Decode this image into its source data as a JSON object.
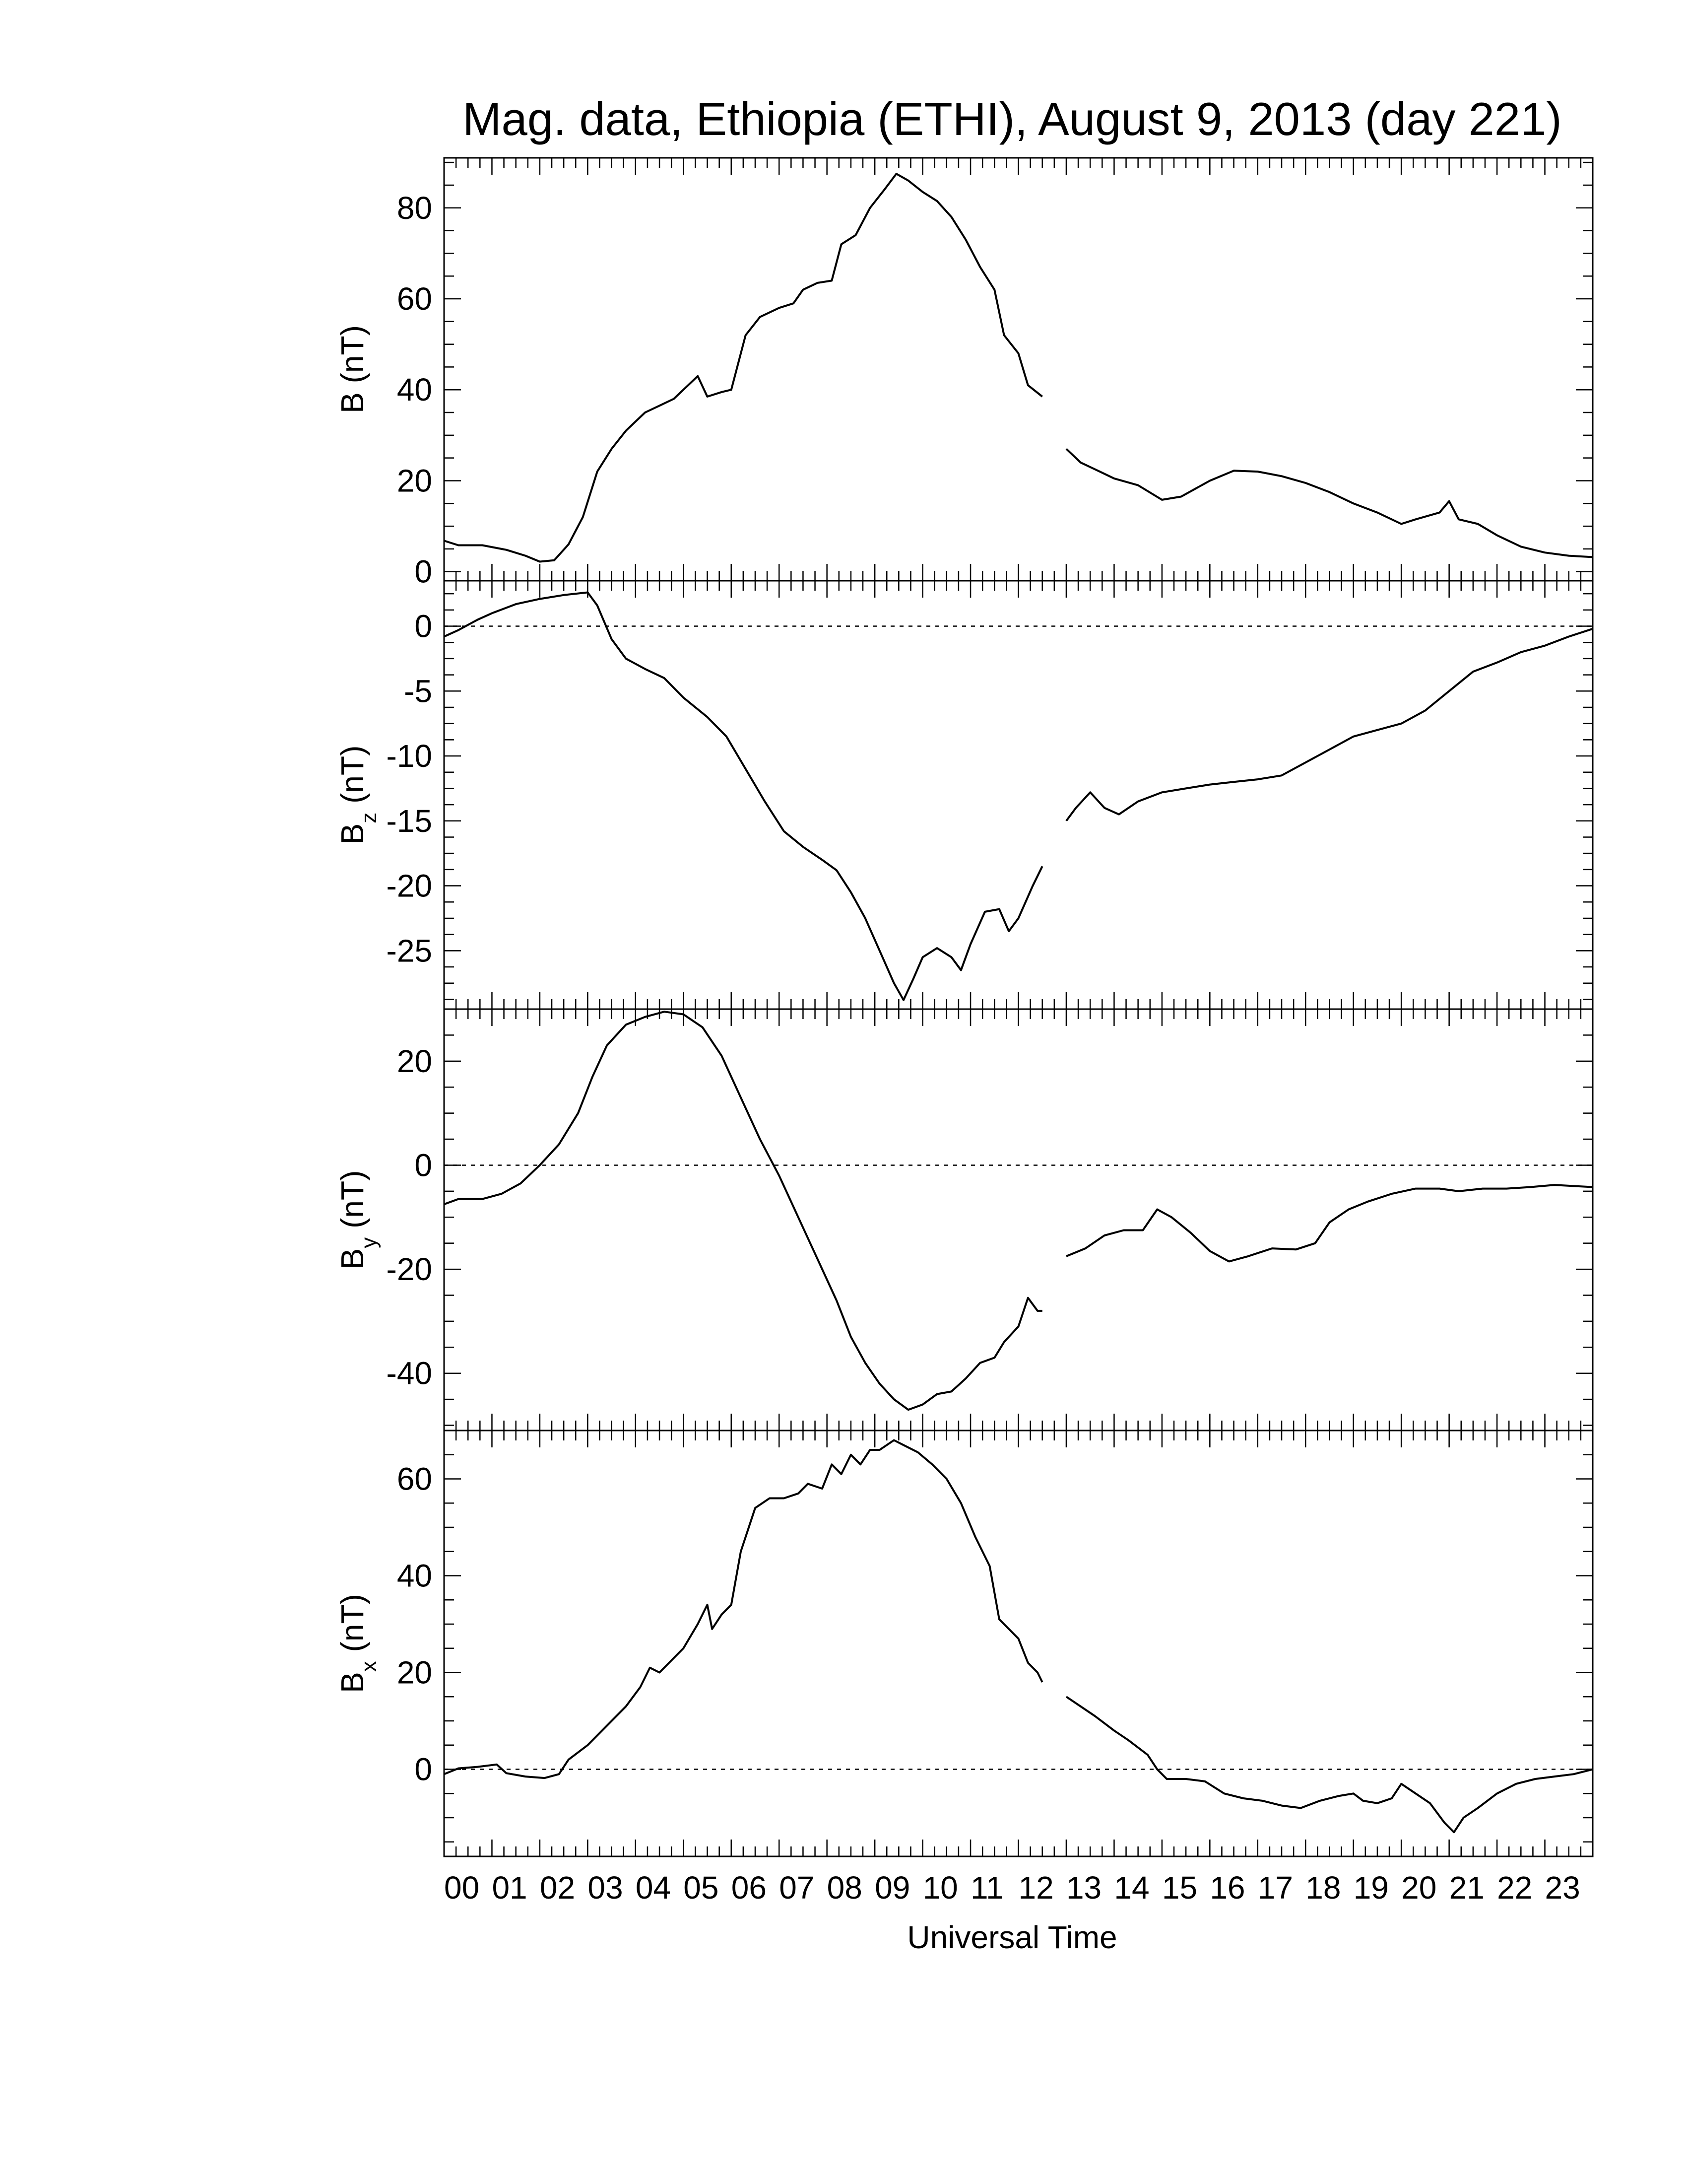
{
  "figure": {
    "title": "Mag. data, Ethiopia (ETHI), August 9, 2013 (day 221)",
    "xlabel": "Universal Time"
  },
  "chart_data": [
    {
      "type": "line",
      "id": "B",
      "ylabel": {
        "main": "B",
        "sub": "",
        "unit": "(nT)"
      },
      "ylim": [
        -2,
        91
      ],
      "yticks": [
        0,
        20,
        40,
        60,
        80
      ],
      "zero_line": false,
      "xlim": [
        0,
        24
      ],
      "segments": [
        [
          [
            0,
            6.8
          ],
          [
            0.3,
            5.8
          ],
          [
            0.8,
            5.8
          ],
          [
            1.3,
            4.8
          ],
          [
            1.7,
            3.5
          ],
          [
            2.0,
            2.2
          ],
          [
            2.3,
            2.5
          ],
          [
            2.6,
            6
          ],
          [
            2.9,
            12
          ],
          [
            3.2,
            22
          ],
          [
            3.5,
            27
          ],
          [
            3.8,
            31
          ],
          [
            4.2,
            35
          ],
          [
            4.5,
            36.5
          ],
          [
            4.8,
            38
          ],
          [
            5.1,
            41
          ],
          [
            5.3,
            43
          ],
          [
            5.5,
            38.5
          ],
          [
            5.8,
            39.5
          ],
          [
            6.0,
            40
          ],
          [
            6.3,
            52
          ],
          [
            6.6,
            56
          ],
          [
            7.0,
            58
          ],
          [
            7.3,
            59
          ],
          [
            7.5,
            62
          ],
          [
            7.8,
            63.5
          ],
          [
            8.1,
            64
          ],
          [
            8.3,
            72
          ],
          [
            8.6,
            74
          ],
          [
            8.9,
            80
          ],
          [
            9.2,
            84
          ],
          [
            9.45,
            87.5
          ],
          [
            9.7,
            86
          ],
          [
            10.0,
            83.5
          ],
          [
            10.3,
            81.5
          ],
          [
            10.6,
            78
          ],
          [
            10.9,
            73
          ],
          [
            11.2,
            67
          ],
          [
            11.5,
            62
          ],
          [
            11.7,
            52
          ],
          [
            12.0,
            48
          ],
          [
            12.2,
            41
          ],
          [
            12.5,
            38.5
          ]
        ],
        [
          [
            13.0,
            27
          ],
          [
            13.3,
            24
          ],
          [
            13.7,
            22
          ],
          [
            14.0,
            20.5
          ],
          [
            14.5,
            19
          ],
          [
            15.0,
            15.8
          ],
          [
            15.4,
            16.5
          ],
          [
            16.0,
            20
          ],
          [
            16.5,
            22.2
          ],
          [
            17.0,
            22
          ],
          [
            17.5,
            21
          ],
          [
            18.0,
            19.5
          ],
          [
            18.5,
            17.5
          ],
          [
            19.0,
            15
          ],
          [
            19.5,
            13
          ],
          [
            20.0,
            10.5
          ],
          [
            20.3,
            11.5
          ],
          [
            20.8,
            13
          ],
          [
            21.0,
            15.5
          ],
          [
            21.2,
            11.5
          ],
          [
            21.6,
            10.5
          ],
          [
            22.0,
            8
          ],
          [
            22.5,
            5.5
          ],
          [
            23.0,
            4.2
          ],
          [
            23.5,
            3.5
          ],
          [
            24.0,
            3.2
          ]
        ]
      ]
    },
    {
      "type": "line",
      "id": "Bz",
      "ylabel": {
        "main": "B",
        "sub": "z",
        "unit": "(nT)"
      },
      "ylim": [
        -29.5,
        3.5
      ],
      "yticks": [
        0,
        -5,
        -10,
        -15,
        -20,
        -25
      ],
      "zero_line": true,
      "xlim": [
        0,
        24
      ],
      "segments": [
        [
          [
            0,
            -0.8
          ],
          [
            0.3,
            -0.3
          ],
          [
            0.7,
            0.5
          ],
          [
            1.0,
            1.0
          ],
          [
            1.5,
            1.7
          ],
          [
            2.0,
            2.1
          ],
          [
            2.5,
            2.4
          ],
          [
            3.0,
            2.6
          ],
          [
            3.2,
            1.6
          ],
          [
            3.5,
            -1.0
          ],
          [
            3.8,
            -2.5
          ],
          [
            4.2,
            -3.3
          ],
          [
            4.6,
            -4.0
          ],
          [
            5.0,
            -5.5
          ],
          [
            5.5,
            -7.0
          ],
          [
            5.9,
            -8.5
          ],
          [
            6.3,
            -11.0
          ],
          [
            6.7,
            -13.5
          ],
          [
            7.1,
            -15.8
          ],
          [
            7.5,
            -17.0
          ],
          [
            7.9,
            -18.0
          ],
          [
            8.2,
            -18.8
          ],
          [
            8.5,
            -20.5
          ],
          [
            8.8,
            -22.5
          ],
          [
            9.1,
            -25.0
          ],
          [
            9.4,
            -27.5
          ],
          [
            9.6,
            -28.8
          ],
          [
            9.8,
            -27.2
          ],
          [
            10.0,
            -25.5
          ],
          [
            10.3,
            -24.8
          ],
          [
            10.6,
            -25.5
          ],
          [
            10.8,
            -26.5
          ],
          [
            11.0,
            -24.5
          ],
          [
            11.3,
            -22.0
          ],
          [
            11.6,
            -21.8
          ],
          [
            11.8,
            -23.5
          ],
          [
            12.0,
            -22.5
          ],
          [
            12.3,
            -20.0
          ],
          [
            12.5,
            -18.5
          ]
        ],
        [
          [
            13.0,
            -15.0
          ],
          [
            13.2,
            -14.0
          ],
          [
            13.5,
            -12.8
          ],
          [
            13.8,
            -14.0
          ],
          [
            14.1,
            -14.5
          ],
          [
            14.5,
            -13.5
          ],
          [
            15.0,
            -12.8
          ],
          [
            15.5,
            -12.5
          ],
          [
            16.0,
            -12.2
          ],
          [
            16.5,
            -12.0
          ],
          [
            17.0,
            -11.8
          ],
          [
            17.5,
            -11.5
          ],
          [
            18.0,
            -10.5
          ],
          [
            18.5,
            -9.5
          ],
          [
            19.0,
            -8.5
          ],
          [
            19.5,
            -8.0
          ],
          [
            20.0,
            -7.5
          ],
          [
            20.5,
            -6.5
          ],
          [
            21.0,
            -5.0
          ],
          [
            21.5,
            -3.5
          ],
          [
            22.0,
            -2.8
          ],
          [
            22.5,
            -2.0
          ],
          [
            23.0,
            -1.5
          ],
          [
            23.5,
            -0.8
          ],
          [
            24.0,
            -0.2
          ]
        ]
      ]
    },
    {
      "type": "line",
      "id": "By",
      "ylabel": {
        "main": "B",
        "sub": "y",
        "unit": "(nT)"
      },
      "ylim": [
        -51,
        30
      ],
      "yticks": [
        20,
        0,
        -20,
        -40
      ],
      "zero_line": true,
      "xlim": [
        0,
        24
      ],
      "segments": [
        [
          [
            0,
            -7.5
          ],
          [
            0.3,
            -6.5
          ],
          [
            0.8,
            -6.5
          ],
          [
            1.2,
            -5.5
          ],
          [
            1.6,
            -3.5
          ],
          [
            2.0,
            0
          ],
          [
            2.4,
            4
          ],
          [
            2.8,
            10
          ],
          [
            3.1,
            17
          ],
          [
            3.4,
            23
          ],
          [
            3.8,
            27
          ],
          [
            4.2,
            28.5
          ],
          [
            4.6,
            29.5
          ],
          [
            5.0,
            29
          ],
          [
            5.4,
            26.5
          ],
          [
            5.8,
            21
          ],
          [
            6.2,
            13
          ],
          [
            6.6,
            5
          ],
          [
            7.0,
            -2
          ],
          [
            7.4,
            -10
          ],
          [
            7.8,
            -18
          ],
          [
            8.2,
            -26
          ],
          [
            8.5,
            -33
          ],
          [
            8.8,
            -38
          ],
          [
            9.1,
            -42
          ],
          [
            9.4,
            -45
          ],
          [
            9.7,
            -47
          ],
          [
            10.0,
            -46
          ],
          [
            10.3,
            -44
          ],
          [
            10.6,
            -43.5
          ],
          [
            10.9,
            -41
          ],
          [
            11.2,
            -38
          ],
          [
            11.5,
            -37
          ],
          [
            11.7,
            -34
          ],
          [
            12.0,
            -31
          ],
          [
            12.2,
            -25.5
          ],
          [
            12.4,
            -28
          ],
          [
            12.5,
            -28
          ]
        ],
        [
          [
            13.0,
            -17.5
          ],
          [
            13.4,
            -16
          ],
          [
            13.8,
            -13.5
          ],
          [
            14.2,
            -12.5
          ],
          [
            14.6,
            -12.5
          ],
          [
            14.9,
            -8.5
          ],
          [
            15.2,
            -10
          ],
          [
            15.6,
            -13
          ],
          [
            16.0,
            -16.5
          ],
          [
            16.4,
            -18.5
          ],
          [
            16.8,
            -17.5
          ],
          [
            17.3,
            -16
          ],
          [
            17.8,
            -16.2
          ],
          [
            18.2,
            -15
          ],
          [
            18.5,
            -11
          ],
          [
            18.9,
            -8.5
          ],
          [
            19.3,
            -7
          ],
          [
            19.8,
            -5.5
          ],
          [
            20.3,
            -4.5
          ],
          [
            20.8,
            -4.5
          ],
          [
            21.2,
            -5
          ],
          [
            21.7,
            -4.5
          ],
          [
            22.2,
            -4.5
          ],
          [
            22.7,
            -4.2
          ],
          [
            23.2,
            -3.8
          ],
          [
            23.6,
            -4
          ],
          [
            24.0,
            -4.2
          ]
        ]
      ]
    },
    {
      "type": "line",
      "id": "Bx",
      "ylabel": {
        "main": "B",
        "sub": "x",
        "unit": "(nT)"
      },
      "ylim": [
        -18,
        70
      ],
      "yticks": [
        60,
        40,
        20,
        0
      ],
      "zero_line": true,
      "xlim": [
        0,
        24
      ],
      "segments": [
        [
          [
            0,
            -1
          ],
          [
            0.3,
            0.2
          ],
          [
            0.7,
            0.5
          ],
          [
            1.1,
            1
          ],
          [
            1.3,
            -0.8
          ],
          [
            1.7,
            -1.5
          ],
          [
            2.1,
            -1.8
          ],
          [
            2.4,
            -1
          ],
          [
            2.6,
            2
          ],
          [
            3.0,
            5
          ],
          [
            3.4,
            9
          ],
          [
            3.8,
            13
          ],
          [
            4.1,
            17
          ],
          [
            4.3,
            21
          ],
          [
            4.5,
            20
          ],
          [
            4.8,
            23
          ],
          [
            5.0,
            25
          ],
          [
            5.3,
            30
          ],
          [
            5.5,
            34
          ],
          [
            5.6,
            29
          ],
          [
            5.8,
            32
          ],
          [
            6.0,
            34
          ],
          [
            6.2,
            45
          ],
          [
            6.5,
            54
          ],
          [
            6.8,
            56
          ],
          [
            7.1,
            56
          ],
          [
            7.4,
            57
          ],
          [
            7.6,
            59
          ],
          [
            7.9,
            58
          ],
          [
            8.1,
            63
          ],
          [
            8.3,
            61
          ],
          [
            8.5,
            65
          ],
          [
            8.7,
            63
          ],
          [
            8.9,
            66
          ],
          [
            9.1,
            66
          ],
          [
            9.4,
            68
          ],
          [
            9.6,
            67
          ],
          [
            9.9,
            65.5
          ],
          [
            10.2,
            63
          ],
          [
            10.5,
            60
          ],
          [
            10.8,
            55
          ],
          [
            11.1,
            48
          ],
          [
            11.4,
            42
          ],
          [
            11.6,
            31
          ],
          [
            11.8,
            29
          ],
          [
            12.0,
            27
          ],
          [
            12.2,
            22
          ],
          [
            12.4,
            20
          ],
          [
            12.5,
            18
          ]
        ],
        [
          [
            13.0,
            15
          ],
          [
            13.3,
            13
          ],
          [
            13.6,
            11
          ],
          [
            14.0,
            8
          ],
          [
            14.3,
            6
          ],
          [
            14.7,
            3
          ],
          [
            14.9,
            0
          ],
          [
            15.1,
            -2
          ],
          [
            15.5,
            -2
          ],
          [
            15.9,
            -2.5
          ],
          [
            16.3,
            -5
          ],
          [
            16.7,
            -6
          ],
          [
            17.1,
            -6.5
          ],
          [
            17.5,
            -7.5
          ],
          [
            17.9,
            -8
          ],
          [
            18.3,
            -6.5
          ],
          [
            18.7,
            -5.5
          ],
          [
            19.0,
            -5
          ],
          [
            19.2,
            -6.5
          ],
          [
            19.5,
            -7
          ],
          [
            19.8,
            -6
          ],
          [
            20.0,
            -3
          ],
          [
            20.3,
            -5
          ],
          [
            20.6,
            -7
          ],
          [
            20.9,
            -11
          ],
          [
            21.1,
            -13
          ],
          [
            21.3,
            -10
          ],
          [
            21.6,
            -8
          ],
          [
            22.0,
            -5
          ],
          [
            22.4,
            -3
          ],
          [
            22.8,
            -2
          ],
          [
            23.2,
            -1.5
          ],
          [
            23.6,
            -1
          ],
          [
            24.0,
            0
          ]
        ]
      ]
    }
  ],
  "xticks": [
    "00",
    "01",
    "02",
    "03",
    "04",
    "05",
    "06",
    "07",
    "08",
    "09",
    "10",
    "11",
    "12",
    "13",
    "14",
    "15",
    "16",
    "17",
    "18",
    "19",
    "20",
    "21",
    "22",
    "23"
  ]
}
